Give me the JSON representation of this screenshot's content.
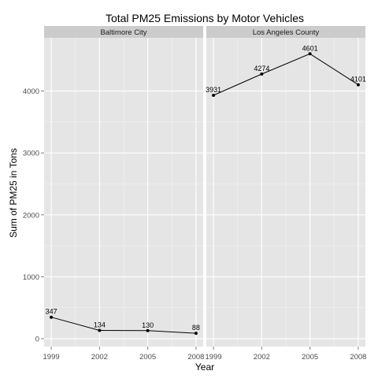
{
  "chart_data": {
    "type": "line",
    "title": "Total PM25 Emissions by Motor Vehicles",
    "xlabel": "Year",
    "ylabel": "Sum of PM25 in Tons",
    "x": [
      1999,
      2002,
      2005,
      2008
    ],
    "xlim": [
      1999,
      2008
    ],
    "ylim": [
      -127,
      4859
    ],
    "yticks": [
      0,
      1000,
      2000,
      3000,
      4000
    ],
    "grid": true,
    "facets": [
      {
        "label": "Baltimore City",
        "values": [
          347,
          134,
          130,
          88
        ]
      },
      {
        "label": "Los Angeles County",
        "values": [
          3931,
          4274,
          4601,
          4101
        ]
      }
    ],
    "colors": {
      "panel_background": "#e5e5e5",
      "strip_background": "#cccccc",
      "grid_major": "#ffffff",
      "grid_minor": "#f2f2f2",
      "line": "#000000",
      "point": "#000000"
    }
  }
}
